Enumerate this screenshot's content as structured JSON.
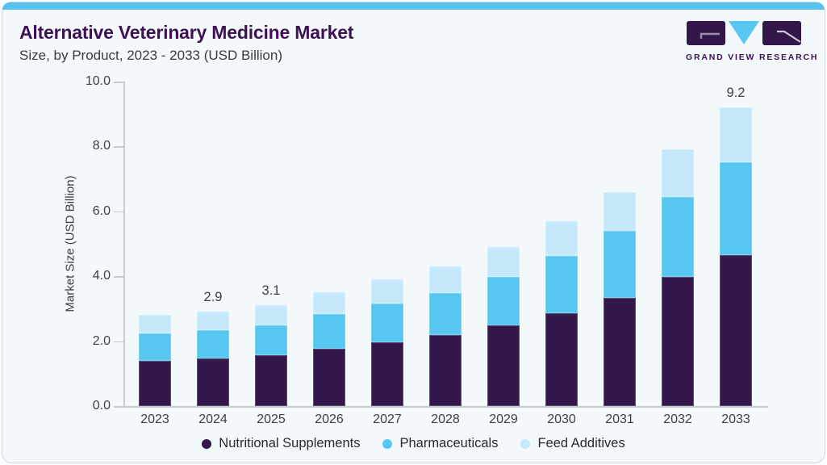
{
  "header": {
    "title": "Alternative Veterinary Medicine Market",
    "subtitle": "Size, by Product, 2023 - 2033 (USD Billion)"
  },
  "logo": {
    "text": "GRAND VIEW RESEARCH",
    "icon": "gvr-logo"
  },
  "colors": {
    "accent_strip": "#58c2ec",
    "title_purple": "#3e1056",
    "card_background": "#f3f8fb",
    "axis_line": "#c5ccd4",
    "tick_text": "#3a3f48",
    "series_nutritional": "#32174a",
    "series_pharmaceuticals": "#57c7f2",
    "series_feed": "#c5e9fb"
  },
  "chart_data": {
    "type": "bar",
    "stacked": true,
    "title": "Alternative Veterinary Medicine Market Size, by Product, 2023 - 2033 (USD Billion)",
    "xlabel": "",
    "ylabel": "Market Size (USD Billion)",
    "ylim": [
      0,
      10
    ],
    "grid": false,
    "legend_position": "bottom",
    "yticks": [
      {
        "value": 0,
        "label": "0.0"
      },
      {
        "value": 2,
        "label": "2.0"
      },
      {
        "value": 4,
        "label": "4.0"
      },
      {
        "value": 6,
        "label": "6.0"
      },
      {
        "value": 8,
        "label": "8.0"
      },
      {
        "value": 10,
        "label": "10.0"
      }
    ],
    "categories": [
      "2023",
      "2024",
      "2025",
      "2026",
      "2027",
      "2028",
      "2029",
      "2030",
      "2031",
      "2032",
      "2033"
    ],
    "series": [
      {
        "name": "Nutritional Supplements",
        "color": "#32174a",
        "values": [
          1.4,
          1.47,
          1.57,
          1.77,
          1.97,
          2.18,
          2.48,
          2.87,
          3.33,
          3.99,
          4.65
        ]
      },
      {
        "name": "Pharmaceuticals",
        "color": "#57c7f2",
        "values": [
          0.85,
          0.87,
          0.92,
          1.06,
          1.19,
          1.31,
          1.5,
          1.76,
          2.06,
          2.45,
          2.87
        ]
      },
      {
        "name": "Feed Additives",
        "color": "#c5e9fb",
        "values": [
          0.55,
          0.56,
          0.61,
          0.67,
          0.74,
          0.81,
          0.92,
          1.07,
          1.21,
          1.46,
          1.68
        ]
      }
    ],
    "totals": [
      2.8,
      2.9,
      3.1,
      3.5,
      3.9,
      4.3,
      4.9,
      5.7,
      6.6,
      7.9,
      9.2
    ],
    "bar_labels": {
      "2024": "2.9",
      "2025": "3.1",
      "2033": "9.2"
    }
  }
}
